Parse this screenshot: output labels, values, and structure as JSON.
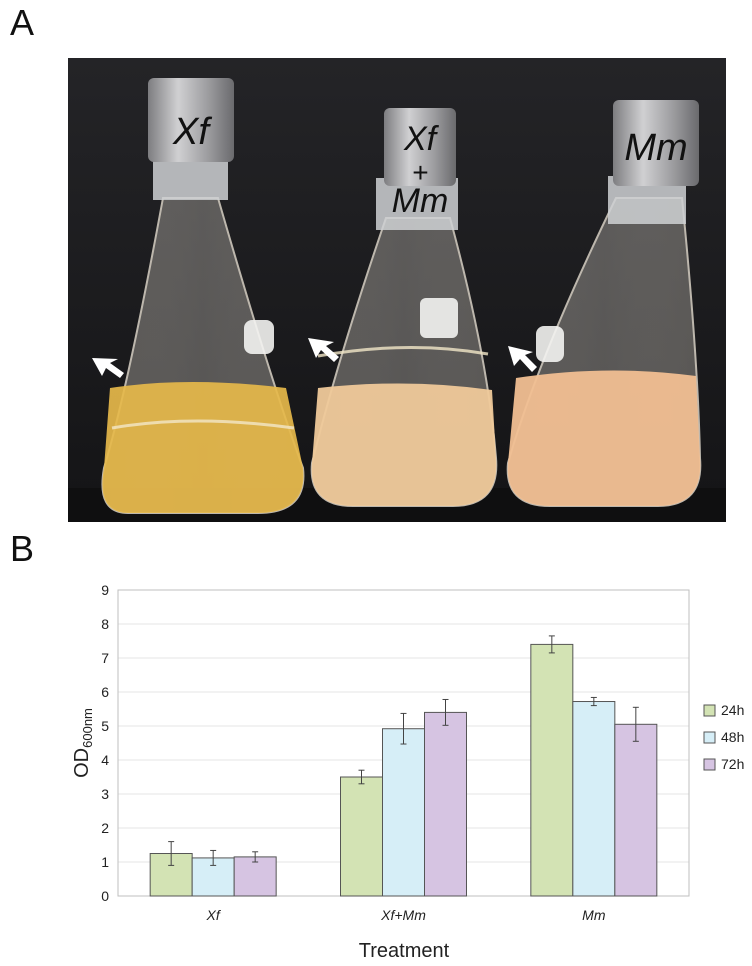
{
  "panels": {
    "a": "A",
    "b": "B"
  },
  "photo": {
    "flask_labels": [
      {
        "lines": [
          "Xf"
        ]
      },
      {
        "lines": [
          "Xf",
          "+",
          "Mm"
        ]
      },
      {
        "lines": [
          "Mm"
        ]
      }
    ],
    "colors": {
      "background": "#1c1c1e",
      "cap": "#a9a9ab",
      "medium_xf": "#e6b94a",
      "medium_mix": "#efc99a",
      "medium_mm": "#f1bf92"
    }
  },
  "chart_data": {
    "type": "bar",
    "categories": [
      "Xf",
      "Xf+Mm",
      "Mm"
    ],
    "series": [
      {
        "name": "24h",
        "values": [
          1.25,
          3.5,
          7.4
        ],
        "errors": [
          0.35,
          0.2,
          0.25
        ],
        "color": "#d3e3b4"
      },
      {
        "name": "48h",
        "values": [
          1.12,
          4.92,
          5.72
        ],
        "errors": [
          0.22,
          0.45,
          0.12
        ],
        "color": "#d6eef7"
      },
      {
        "name": "72h",
        "values": [
          1.15,
          5.4,
          5.05
        ],
        "errors": [
          0.15,
          0.38,
          0.5
        ],
        "color": "#d6c4e2"
      }
    ],
    "ylabel_main": "OD",
    "ylabel_sub": "600nm",
    "xlabel": "Treatment",
    "ylim": [
      0,
      9
    ],
    "yticks": [
      0,
      1,
      2,
      3,
      4,
      5,
      6,
      7,
      8,
      9
    ],
    "grid": true,
    "legend": "right"
  }
}
